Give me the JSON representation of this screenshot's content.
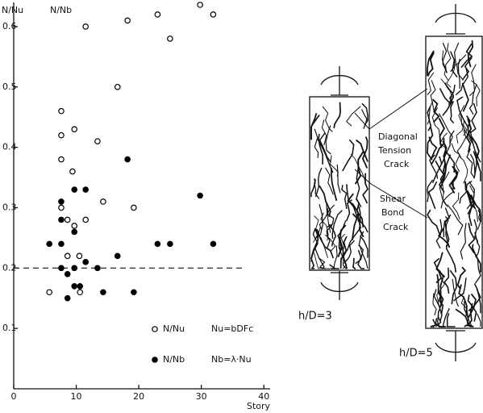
{
  "chart_data": {
    "type": "scatter",
    "ylabel": "N/Nu",
    "ylabel2": "N/Nb",
    "xlabel": "Story",
    "xlim": [
      0,
      41
    ],
    "ylim": [
      0,
      0.64
    ],
    "xticks": [
      0,
      10,
      20,
      30,
      40
    ],
    "yticks": [
      0.1,
      0.2,
      0.3,
      0.4,
      0.5,
      0.6
    ],
    "reference_line": 0.2,
    "series": [
      {
        "name": "N/Nu",
        "formula": "Nu=bDFc",
        "marker": "open",
        "color": "#000000",
        "x": [
          11.5,
          18.2,
          23,
          29.8,
          31.9,
          25,
          16.6,
          7.6,
          7.6,
          9.7,
          13.4,
          7.6,
          9.4,
          14.3,
          7.6,
          19.2,
          8.6,
          11.5,
          9.7,
          8.6,
          10.5,
          5.7,
          10.6
        ],
        "values": [
          0.6,
          0.61,
          0.62,
          0.636,
          0.62,
          0.58,
          0.5,
          0.46,
          0.42,
          0.43,
          0.41,
          0.38,
          0.36,
          0.31,
          0.3,
          0.3,
          0.28,
          0.28,
          0.27,
          0.22,
          0.22,
          0.16,
          0.16
        ]
      },
      {
        "name": "N/Nb",
        "formula": "Nb=λ·Nu",
        "marker": "filled",
        "color": "#000000",
        "x": [
          18.2,
          9.7,
          11.5,
          7.6,
          29.8,
          7.6,
          9.7,
          5.7,
          7.6,
          23,
          25,
          31.9,
          16.6,
          11.5,
          7.6,
          9.7,
          13.4,
          8.6,
          9.7,
          10.6,
          14.3,
          19.2,
          8.6
        ],
        "values": [
          0.38,
          0.33,
          0.33,
          0.31,
          0.32,
          0.28,
          0.26,
          0.24,
          0.24,
          0.24,
          0.24,
          0.24,
          0.22,
          0.21,
          0.2,
          0.2,
          0.2,
          0.19,
          0.17,
          0.17,
          0.16,
          0.16,
          0.15
        ]
      }
    ]
  },
  "diagram": {
    "crack_labels": [
      {
        "lines": [
          "Diagonal",
          "Tension",
          "Crack"
        ]
      },
      {
        "lines": [
          "Shear",
          "Bond",
          "Crack"
        ]
      }
    ],
    "columns": [
      {
        "label": "h/D=3"
      },
      {
        "label": "h/D=5"
      }
    ]
  }
}
